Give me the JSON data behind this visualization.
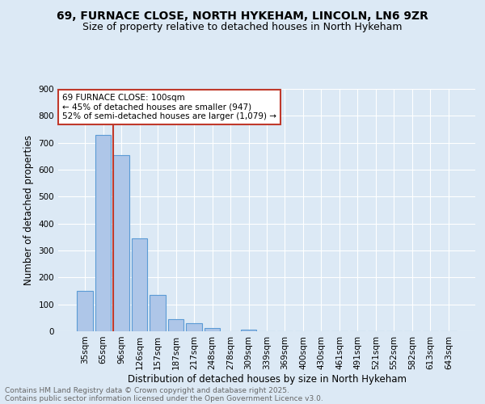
{
  "title1": "69, FURNACE CLOSE, NORTH HYKEHAM, LINCOLN, LN6 9ZR",
  "title2": "Size of property relative to detached houses in North Hykeham",
  "xlabel": "Distribution of detached houses by size in North Hykeham",
  "ylabel": "Number of detached properties",
  "categories": [
    "35sqm",
    "65sqm",
    "96sqm",
    "126sqm",
    "157sqm",
    "187sqm",
    "217sqm",
    "248sqm",
    "278sqm",
    "309sqm",
    "339sqm",
    "369sqm",
    "400sqm",
    "430sqm",
    "461sqm",
    "491sqm",
    "521sqm",
    "552sqm",
    "582sqm",
    "613sqm",
    "643sqm"
  ],
  "values": [
    150,
    730,
    655,
    345,
    135,
    45,
    30,
    12,
    0,
    5,
    0,
    0,
    0,
    0,
    0,
    0,
    0,
    0,
    0,
    0,
    0
  ],
  "bar_color": "#aec6e8",
  "bar_edge_color": "#5b9bd5",
  "vline_color": "#c0392b",
  "vline_position": 1.575,
  "annotation_text": "69 FURNACE CLOSE: 100sqm\n← 45% of detached houses are smaller (947)\n52% of semi-detached houses are larger (1,079) →",
  "annotation_box_facecolor": "#ffffff",
  "annotation_box_edgecolor": "#c0392b",
  "ylim": [
    0,
    900
  ],
  "yticks": [
    0,
    100,
    200,
    300,
    400,
    500,
    600,
    700,
    800,
    900
  ],
  "bg_color": "#dce9f5",
  "plot_bg_color": "#dce9f5",
  "footer_line1": "Contains HM Land Registry data © Crown copyright and database right 2025.",
  "footer_line2": "Contains public sector information licensed under the Open Government Licence v3.0.",
  "grid_color": "#ffffff",
  "title1_fontsize": 10,
  "title2_fontsize": 9,
  "xlabel_fontsize": 8.5,
  "ylabel_fontsize": 8.5,
  "tick_fontsize": 7.5,
  "annot_fontsize": 7.5,
  "footer_fontsize": 6.5
}
